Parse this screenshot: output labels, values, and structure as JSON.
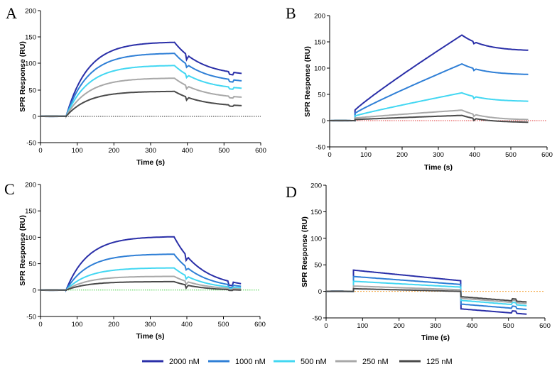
{
  "chart_data": [
    {
      "panel": "A",
      "type": "line",
      "xlabel": "Time (s)",
      "ylabel": "SPR Response (RU)",
      "xlim": [
        0,
        600
      ],
      "ylim": [
        -50,
        200
      ],
      "xticks": [
        0,
        100,
        200,
        300,
        400,
        500,
        600
      ],
      "yticks": [
        -50,
        0,
        50,
        100,
        150,
        200
      ],
      "baseline_color": "#333333",
      "association_start": 70,
      "dissociation_start": 365,
      "end_time": 550,
      "model": "saturating",
      "series": [
        {
          "name": "2000 nM",
          "color": "#2a2fa8",
          "start_jump": 0,
          "peak": 140,
          "end": 81
        },
        {
          "name": "1000 nM",
          "color": "#2f7fd6",
          "start_jump": 0,
          "peak": 119,
          "end": 67
        },
        {
          "name": "500 nM",
          "color": "#42d7f2",
          "start_jump": 0,
          "peak": 96,
          "end": 53
        },
        {
          "name": "250 nM",
          "color": "#a8a8a8",
          "start_jump": 0,
          "peak": 72,
          "end": 36
        },
        {
          "name": "125 nM",
          "color": "#4a4a4a",
          "start_jump": 0,
          "peak": 47,
          "end": 20
        }
      ]
    },
    {
      "panel": "B",
      "type": "line",
      "xlabel": "Time (s)",
      "ylabel": "SPR Response (RU)",
      "xlim": [
        0,
        600
      ],
      "ylim": [
        -50,
        200
      ],
      "xticks": [
        0,
        100,
        200,
        300,
        400,
        500,
        600
      ],
      "yticks": [
        -50,
        0,
        50,
        100,
        150,
        200
      ],
      "baseline_color": "#e23b3b",
      "association_start": 70,
      "dissociation_start": 365,
      "end_time": 550,
      "model": "linear",
      "series": [
        {
          "name": "2000 nM",
          "color": "#2a2fa8",
          "start_jump": 20,
          "peak": 163,
          "end": 134
        },
        {
          "name": "1000 nM",
          "color": "#2f7fd6",
          "start_jump": 14,
          "peak": 108,
          "end": 88
        },
        {
          "name": "500 nM",
          "color": "#42d7f2",
          "start_jump": 9,
          "peak": 53,
          "end": 37
        },
        {
          "name": "250 nM",
          "color": "#a8a8a8",
          "start_jump": 5,
          "peak": 20,
          "end": 2
        },
        {
          "name": "125 nM",
          "color": "#4a4a4a",
          "start_jump": 2,
          "peak": 10,
          "end": -3
        }
      ]
    },
    {
      "panel": "C",
      "type": "line",
      "xlabel": "Time (s)",
      "ylabel": "SPR Response (RU)",
      "xlim": [
        0,
        600
      ],
      "ylim": [
        -50,
        200
      ],
      "xticks": [
        0,
        100,
        200,
        300,
        400,
        500,
        600
      ],
      "yticks": [
        -50,
        0,
        50,
        100,
        150,
        200
      ],
      "baseline_color": "#3ccf3c",
      "association_start": 70,
      "dissociation_start": 365,
      "end_time": 550,
      "model": "saturating",
      "series": [
        {
          "name": "2000 nM",
          "color": "#2a2fa8",
          "start_jump": 0,
          "peak": 101,
          "end": 12
        },
        {
          "name": "1000 nM",
          "color": "#2f7fd6",
          "start_jump": 0,
          "peak": 68,
          "end": 7
        },
        {
          "name": "500 nM",
          "color": "#42d7f2",
          "start_jump": 0,
          "peak": 42,
          "end": 4
        },
        {
          "name": "250 nM",
          "color": "#a8a8a8",
          "start_jump": 0,
          "peak": 26,
          "end": 2
        },
        {
          "name": "125 nM",
          "color": "#4a4a4a",
          "start_jump": 0,
          "peak": 16,
          "end": 0
        }
      ]
    },
    {
      "panel": "D",
      "type": "line",
      "xlabel": "Time (s)",
      "ylabel": "SPR Response (RU)",
      "xlim": [
        0,
        600
      ],
      "ylim": [
        -50,
        200
      ],
      "xticks": [
        0,
        100,
        200,
        300,
        400,
        500,
        600
      ],
      "yticks": [
        -50,
        0,
        50,
        100,
        150,
        200
      ],
      "baseline_color": "#f5a23a",
      "association_start": 75,
      "dissociation_start": 370,
      "end_time": 550,
      "model": "square",
      "series": [
        {
          "name": "2000 nM",
          "color": "#2a2fa8",
          "start_jump": 40,
          "peak": 20,
          "end": -43
        },
        {
          "name": "1000 nM",
          "color": "#2f7fd6",
          "start_jump": 28,
          "peak": 13,
          "end": -34
        },
        {
          "name": "500 nM",
          "color": "#42d7f2",
          "start_jump": 19,
          "peak": 8,
          "end": -27
        },
        {
          "name": "250 nM",
          "color": "#a8a8a8",
          "start_jump": 10,
          "peak": 3,
          "end": -23
        },
        {
          "name": "125 nM",
          "color": "#4a4a4a",
          "start_jump": 5,
          "peak": 0,
          "end": -20
        }
      ]
    }
  ],
  "legend": [
    {
      "name": "2000 nM",
      "color": "#2a2fa8"
    },
    {
      "name": "1000 nM",
      "color": "#2f7fd6"
    },
    {
      "name": "500 nM",
      "color": "#42d7f2"
    },
    {
      "name": "250 nM",
      "color": "#a8a8a8"
    },
    {
      "name": "125 nM",
      "color": "#4a4a4a"
    }
  ]
}
